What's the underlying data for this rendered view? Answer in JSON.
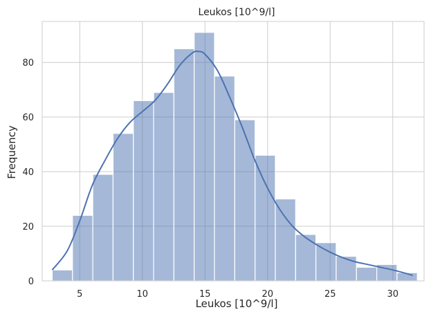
{
  "chart_data": {
    "type": "bar",
    "title": "Leukos [10^9/l]",
    "xlabel": "Leukos [10^9/l]",
    "ylabel": "Frequency",
    "xlim": [
      2.0,
      32.5
    ],
    "ylim": [
      0,
      95
    ],
    "xticks": [
      5,
      10,
      15,
      20,
      25,
      30
    ],
    "yticks": [
      0,
      20,
      40,
      60,
      80
    ],
    "grid": true,
    "bin_start": 2.8,
    "bin_width": 1.62,
    "values": [
      4,
      24,
      39,
      54,
      66,
      69,
      85,
      91,
      75,
      59,
      46,
      30,
      17,
      14,
      9,
      5,
      6,
      3
    ],
    "bar_color": "#4c72b0",
    "kde": {
      "x": [
        2.8,
        4,
        5,
        6,
        7,
        8,
        9,
        10,
        11,
        12,
        13,
        14,
        14.5,
        15,
        16,
        17,
        18,
        19,
        20,
        21,
        22,
        23,
        24,
        25,
        26,
        27,
        28,
        29,
        30,
        31,
        31.6
      ],
      "y": [
        4,
        11,
        22,
        35,
        44,
        52,
        58,
        62,
        66,
        72,
        79,
        83.5,
        84,
        83,
        77,
        67,
        56,
        44,
        34,
        26,
        20,
        16,
        13,
        10.5,
        8.5,
        7,
        6,
        5,
        4,
        2.8,
        2
      ],
      "color": "#4c72b0"
    }
  }
}
